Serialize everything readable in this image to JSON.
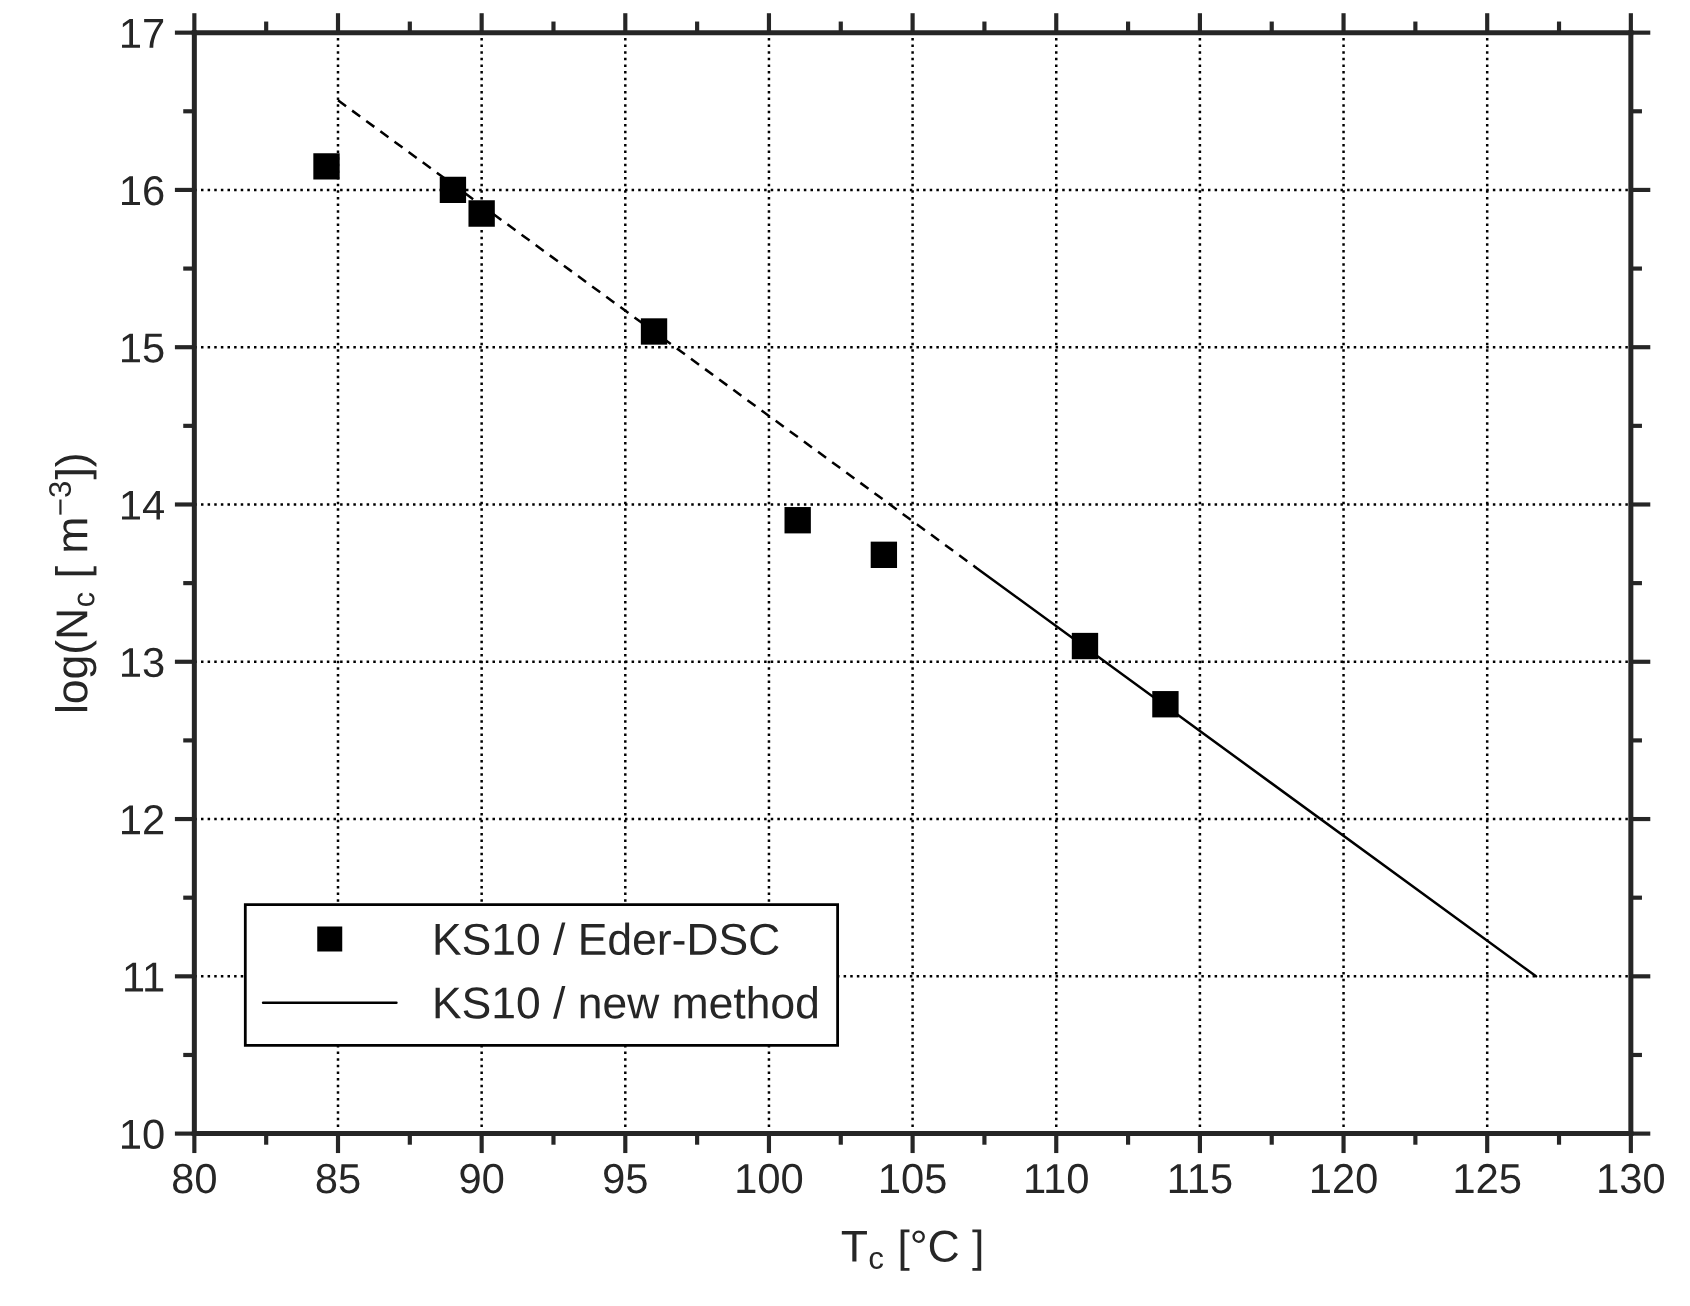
{
  "chart_data": {
    "type": "scatter",
    "xlabel": "T$_{c}$ [°C ]",
    "ylabel": "log(N$_{c}$ [ m$^{−3}$])",
    "xlim": [
      80,
      130
    ],
    "ylim": [
      10,
      17
    ],
    "xticks": [
      80,
      85,
      90,
      95,
      100,
      105,
      110,
      115,
      120,
      125,
      130
    ],
    "yticks": [
      10,
      11,
      12,
      13,
      14,
      15,
      16,
      17
    ],
    "grid": true,
    "legend": "bottom left",
    "series": [
      {
        "name": "KS10 / Eder-DSC",
        "marker": "square",
        "color": "#000000",
        "x": [
          84.6,
          89,
          90,
          96,
          101,
          104,
          111,
          113.8
        ],
        "values": [
          16.15,
          16.0,
          15.85,
          15.1,
          13.9,
          13.68,
          13.1,
          12.73
        ]
      },
      {
        "name": "KS10 / new method",
        "type": "line",
        "line_style": "solid",
        "marker": "none",
        "color": "#000000",
        "x": [
          107.2,
          126.7
        ],
        "values": [
          13.6,
          11.0
        ]
      },
      {
        "type": "line",
        "line_style": "dashed",
        "marker": "none",
        "color": "#000000",
        "x": [
          85,
          107.2
        ],
        "values": [
          16.57,
          13.6
        ]
      }
    ]
  }
}
